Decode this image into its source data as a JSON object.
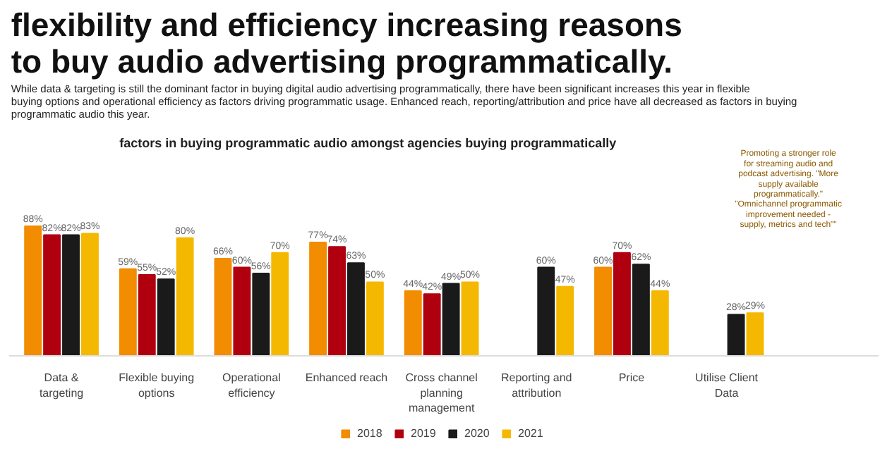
{
  "chart_data": {
    "type": "bar",
    "title": "flexibility and efficiency increasing reasons to buy audio advertising programmatically.",
    "subtitle": "While data & targeting is still the dominant factor in buying digital audio advertising programmatically, there have been significant increases this year in flexible buying options and operational efficiency as factors driving programmatic usage. Enhanced reach, reporting/attribution and price have all decreased as factors in buying programmatic audio this year.",
    "annotations": [
      "factors in buying programmatic audio amongst agencies buying programmatically",
      "Promoting a stronger role for streaming audio and podcast advertising. \"More supply available programmatically.\" \"Omnichannel programmatic improvement needed - supply, metrics and tech\"\""
    ],
    "categories": [
      "Data & targeting",
      "Flexible buying options",
      "Operational efficiency",
      "Enhanced reach",
      "Cross channel planning management",
      "Reporting and attribution",
      "Price",
      "Utilise Client Data"
    ],
    "series": [
      {
        "name": "2018",
        "color": "#f28c00",
        "values": [
          88,
          59,
          66,
          77,
          44,
          null,
          60,
          null
        ],
        "value_labels": [
          "88%",
          "59%",
          "66%",
          "77%",
          "44%",
          null,
          "60%",
          null
        ]
      },
      {
        "name": "2019",
        "color": "#b00010",
        "values": [
          82,
          55,
          60,
          74,
          42,
          null,
          70,
          null
        ],
        "value_labels": [
          "82%",
          "55%",
          "60%",
          "74%",
          "42%",
          null,
          "70%",
          null
        ]
      },
      {
        "name": "2020",
        "color": "#1a1a1a",
        "values": [
          82,
          52,
          56,
          63,
          49,
          60,
          62,
          28
        ],
        "value_labels": [
          "82%",
          "52%",
          "56%",
          "63%",
          "49%",
          "60%",
          "62%",
          "28%"
        ]
      },
      {
        "name": "2021",
        "color": "#f5b800",
        "values": [
          83,
          80,
          70,
          50,
          50,
          47,
          44,
          29
        ],
        "value_labels": [
          "83%",
          "80%",
          "70%",
          "50%",
          "50%",
          "47%",
          "44%",
          "29%"
        ]
      }
    ],
    "legend": "bottom",
    "grid": false
  }
}
